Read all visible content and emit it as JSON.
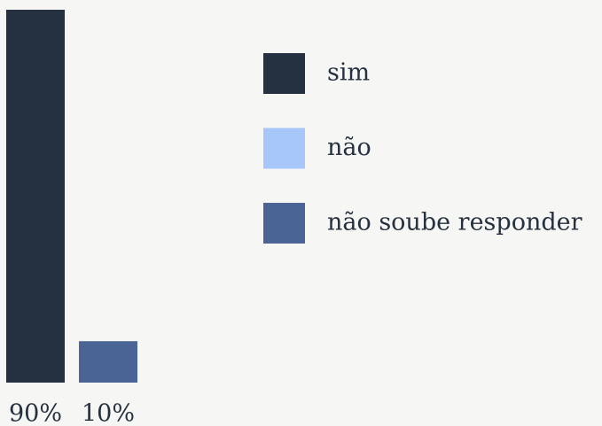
{
  "chart_data": {
    "type": "bar",
    "values": [
      90,
      10
    ],
    "value_labels": [
      "90%",
      "10%"
    ],
    "colors": [
      "#253040",
      "#4a6595"
    ],
    "legend": [
      {
        "name": "sim",
        "color": "#253040"
      },
      {
        "name": "não",
        "color": "#a7c7fb"
      },
      {
        "name": "não soube responder",
        "color": "#4a6595"
      }
    ]
  }
}
